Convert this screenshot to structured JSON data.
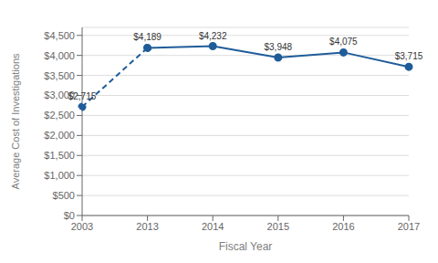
{
  "chart_data": {
    "type": "line",
    "xlabel": "Fiscal Year",
    "ylabel": "Average Cost of Investigations",
    "categories": [
      "2003",
      "2013",
      "2014",
      "2015",
      "2016",
      "2017"
    ],
    "series": [
      {
        "color": "#1F5C99",
        "line_style": "dashed",
        "marker": "circle",
        "values": [
          2715,
          4189,
          null,
          null,
          null,
          null
        ],
        "value_labels": [
          "$2,715",
          null,
          null,
          null,
          null,
          null
        ]
      },
      {
        "color": "#1F5C99",
        "line_style": "solid",
        "marker": "circle",
        "values": [
          null,
          4189,
          4232,
          3948,
          4075,
          3715
        ],
        "value_labels": [
          null,
          "$4,189",
          "$4,232",
          "$3,948",
          "$4,075",
          "$3,715"
        ]
      }
    ],
    "data_labels": true,
    "ylim": [
      0,
      4700
    ],
    "yticks": [
      {
        "value": 0,
        "label": "$0"
      },
      {
        "value": 500,
        "label": "$500"
      },
      {
        "value": 1000,
        "label": "$1,000"
      },
      {
        "value": 1500,
        "label": "$1,500"
      },
      {
        "value": 2000,
        "label": "$2,000"
      },
      {
        "value": 2500,
        "label": "$2,500"
      },
      {
        "value": 3000,
        "label": "$3,000"
      },
      {
        "value": 3500,
        "label": "$3,500"
      },
      {
        "value": 4000,
        "label": "$4,000"
      },
      {
        "value": 4500,
        "label": "$4,500"
      }
    ],
    "grid": true
  }
}
